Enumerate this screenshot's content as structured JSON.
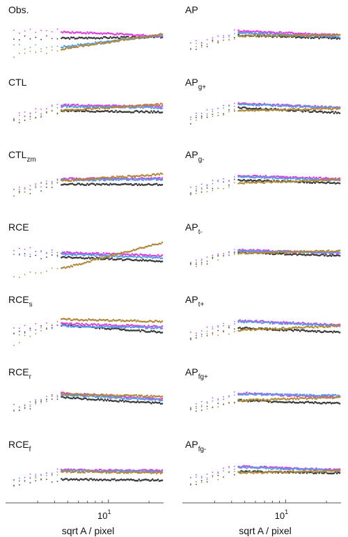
{
  "colors": {
    "black": "#3a3a3a",
    "magenta": "#e040e0",
    "blue": "#5a9ae6",
    "tan": "#b08a3a"
  },
  "x_axis": {
    "label": "sqrt A / pixel",
    "tick_label_base": "10",
    "tick_label_exp": "1"
  },
  "chart_data": {
    "type": "scatter",
    "x_scale": "log",
    "xlabel": "sqrt A / pixel",
    "x_ticks": [
      10
    ],
    "xlim": [
      2,
      25
    ],
    "ylim": [
      0,
      1
    ],
    "grid": false,
    "legend": "none",
    "panels": [
      {
        "name": "Obs.",
        "title_main": "Obs.",
        "title_sub": "",
        "series": [
          {
            "color": "black",
            "y_start": 0.55,
            "y_knee": 0.55,
            "y_end": 0.58
          },
          {
            "color": "magenta",
            "y_start": 0.72,
            "y_knee": 0.7,
            "y_end": 0.6
          },
          {
            "color": "blue",
            "y_start": 0.35,
            "y_knee": 0.35,
            "y_end": 0.62
          },
          {
            "color": "tan",
            "y_start": 0.15,
            "y_knee": 0.3,
            "y_end": 0.64
          }
        ]
      },
      {
        "name": "AP",
        "title_main": "AP",
        "title_sub": "",
        "series": [
          {
            "color": "black",
            "y_start": 0.3,
            "y_knee": 0.62,
            "y_end": 0.55
          },
          {
            "color": "magenta",
            "y_start": 0.4,
            "y_knee": 0.72,
            "y_end": 0.62
          },
          {
            "color": "blue",
            "y_start": 0.35,
            "y_knee": 0.68,
            "y_end": 0.58
          },
          {
            "color": "tan",
            "y_start": 0.3,
            "y_knee": 0.6,
            "y_end": 0.63
          }
        ]
      },
      {
        "name": "CTL",
        "title_main": "CTL",
        "title_sub": "",
        "series": [
          {
            "color": "black",
            "y_start": 0.3,
            "y_knee": 0.55,
            "y_end": 0.52
          },
          {
            "color": "magenta",
            "y_start": 0.42,
            "y_knee": 0.68,
            "y_end": 0.65
          },
          {
            "color": "blue",
            "y_start": 0.38,
            "y_knee": 0.65,
            "y_end": 0.62
          },
          {
            "color": "tan",
            "y_start": 0.3,
            "y_knee": 0.55,
            "y_end": 0.7
          }
        ]
      },
      {
        "name": "APg+",
        "title_main": "AP",
        "title_sub": "g+",
        "series": [
          {
            "color": "black",
            "y_start": 0.3,
            "y_knee": 0.62,
            "y_end": 0.5
          },
          {
            "color": "magenta",
            "y_start": 0.42,
            "y_knee": 0.72,
            "y_end": 0.62
          },
          {
            "color": "blue",
            "y_start": 0.38,
            "y_knee": 0.7,
            "y_end": 0.62
          },
          {
            "color": "tan",
            "y_start": 0.3,
            "y_knee": 0.55,
            "y_end": 0.6
          }
        ]
      },
      {
        "name": "CTLzm",
        "title_main": "CTL",
        "title_sub": "zm",
        "series": [
          {
            "color": "black",
            "y_start": 0.28,
            "y_knee": 0.52,
            "y_end": 0.52
          },
          {
            "color": "magenta",
            "y_start": 0.4,
            "y_knee": 0.65,
            "y_end": 0.66
          },
          {
            "color": "blue",
            "y_start": 0.36,
            "y_knee": 0.62,
            "y_end": 0.64
          },
          {
            "color": "tan",
            "y_start": 0.3,
            "y_knee": 0.6,
            "y_end": 0.76
          }
        ]
      },
      {
        "name": "APg-",
        "title_main": "AP",
        "title_sub": "g-",
        "series": [
          {
            "color": "black",
            "y_start": 0.3,
            "y_knee": 0.62,
            "y_end": 0.55
          },
          {
            "color": "magenta",
            "y_start": 0.42,
            "y_knee": 0.72,
            "y_end": 0.65
          },
          {
            "color": "blue",
            "y_start": 0.38,
            "y_knee": 0.7,
            "y_end": 0.62
          },
          {
            "color": "tan",
            "y_start": 0.3,
            "y_knee": 0.55,
            "y_end": 0.63
          }
        ]
      },
      {
        "name": "RCE",
        "title_main": "RCE",
        "title_sub": "",
        "series": [
          {
            "color": "black",
            "y_start": 0.55,
            "y_knee": 0.52,
            "y_end": 0.42
          },
          {
            "color": "magenta",
            "y_start": 0.72,
            "y_knee": 0.62,
            "y_end": 0.55
          },
          {
            "color": "blue",
            "y_start": 0.6,
            "y_knee": 0.58,
            "y_end": 0.5
          },
          {
            "color": "tan",
            "y_start": 0.05,
            "y_knee": 0.25,
            "y_end": 0.85
          }
        ]
      },
      {
        "name": "APt-",
        "title_main": "AP",
        "title_sub": "t-",
        "series": [
          {
            "color": "black",
            "y_start": 0.3,
            "y_knee": 0.62,
            "y_end": 0.55
          },
          {
            "color": "magenta",
            "y_start": 0.42,
            "y_knee": 0.68,
            "y_end": 0.6
          },
          {
            "color": "blue",
            "y_start": 0.38,
            "y_knee": 0.66,
            "y_end": 0.62
          },
          {
            "color": "tan",
            "y_start": 0.3,
            "y_knee": 0.6,
            "y_end": 0.66
          }
        ]
      },
      {
        "name": "RCEs",
        "title_main": "RCE",
        "title_sub": "s",
        "series": [
          {
            "color": "black",
            "y_start": 0.45,
            "y_knee": 0.62,
            "y_end": 0.45
          },
          {
            "color": "magenta",
            "y_start": 0.55,
            "y_knee": 0.65,
            "y_end": 0.58
          },
          {
            "color": "blue",
            "y_start": 0.4,
            "y_knee": 0.6,
            "y_end": 0.55
          },
          {
            "color": "tan",
            "y_start": 0.2,
            "y_knee": 0.75,
            "y_end": 0.7
          }
        ]
      },
      {
        "name": "APt+",
        "title_main": "AP",
        "title_sub": "t+",
        "series": [
          {
            "color": "black",
            "y_start": 0.3,
            "y_knee": 0.55,
            "y_end": 0.45
          },
          {
            "color": "magenta",
            "y_start": 0.42,
            "y_knee": 0.72,
            "y_end": 0.62
          },
          {
            "color": "blue",
            "y_start": 0.38,
            "y_knee": 0.7,
            "y_end": 0.6
          },
          {
            "color": "tan",
            "y_start": 0.3,
            "y_knee": 0.5,
            "y_end": 0.6
          }
        ]
      },
      {
        "name": "RCEr",
        "title_main": "RCE",
        "title_sub": "r",
        "series": [
          {
            "color": "black",
            "y_start": 0.3,
            "y_knee": 0.62,
            "y_end": 0.48
          },
          {
            "color": "magenta",
            "y_start": 0.4,
            "y_knee": 0.72,
            "y_end": 0.58
          },
          {
            "color": "blue",
            "y_start": 0.35,
            "y_knee": 0.68,
            "y_end": 0.56
          },
          {
            "color": "tan",
            "y_start": 0.3,
            "y_knee": 0.7,
            "y_end": 0.64
          }
        ]
      },
      {
        "name": "APfg+",
        "title_main": "AP",
        "title_sub": "fg+",
        "series": [
          {
            "color": "black",
            "y_start": 0.3,
            "y_knee": 0.55,
            "y_end": 0.48
          },
          {
            "color": "magenta",
            "y_start": 0.42,
            "y_knee": 0.72,
            "y_end": 0.62
          },
          {
            "color": "blue",
            "y_start": 0.38,
            "y_knee": 0.7,
            "y_end": 0.66
          },
          {
            "color": "tan",
            "y_start": 0.3,
            "y_knee": 0.55,
            "y_end": 0.62
          }
        ]
      },
      {
        "name": "RCEf",
        "title_main": "RCE",
        "title_sub": "f",
        "series": [
          {
            "color": "black",
            "y_start": 0.3,
            "y_knee": 0.4,
            "y_end": 0.38
          },
          {
            "color": "magenta",
            "y_start": 0.4,
            "y_knee": 0.62,
            "y_end": 0.6
          },
          {
            "color": "blue",
            "y_start": 0.35,
            "y_knee": 0.6,
            "y_end": 0.58
          },
          {
            "color": "tan",
            "y_start": 0.3,
            "y_knee": 0.58,
            "y_end": 0.55
          }
        ]
      },
      {
        "name": "APfg-",
        "title_main": "AP",
        "title_sub": "fg-",
        "series": [
          {
            "color": "black",
            "y_start": 0.3,
            "y_knee": 0.58,
            "y_end": 0.55
          },
          {
            "color": "magenta",
            "y_start": 0.42,
            "y_knee": 0.7,
            "y_end": 0.62
          },
          {
            "color": "blue",
            "y_start": 0.38,
            "y_knee": 0.68,
            "y_end": 0.6
          },
          {
            "color": "tan",
            "y_start": 0.3,
            "y_knee": 0.55,
            "y_end": 0.6
          }
        ]
      }
    ]
  }
}
